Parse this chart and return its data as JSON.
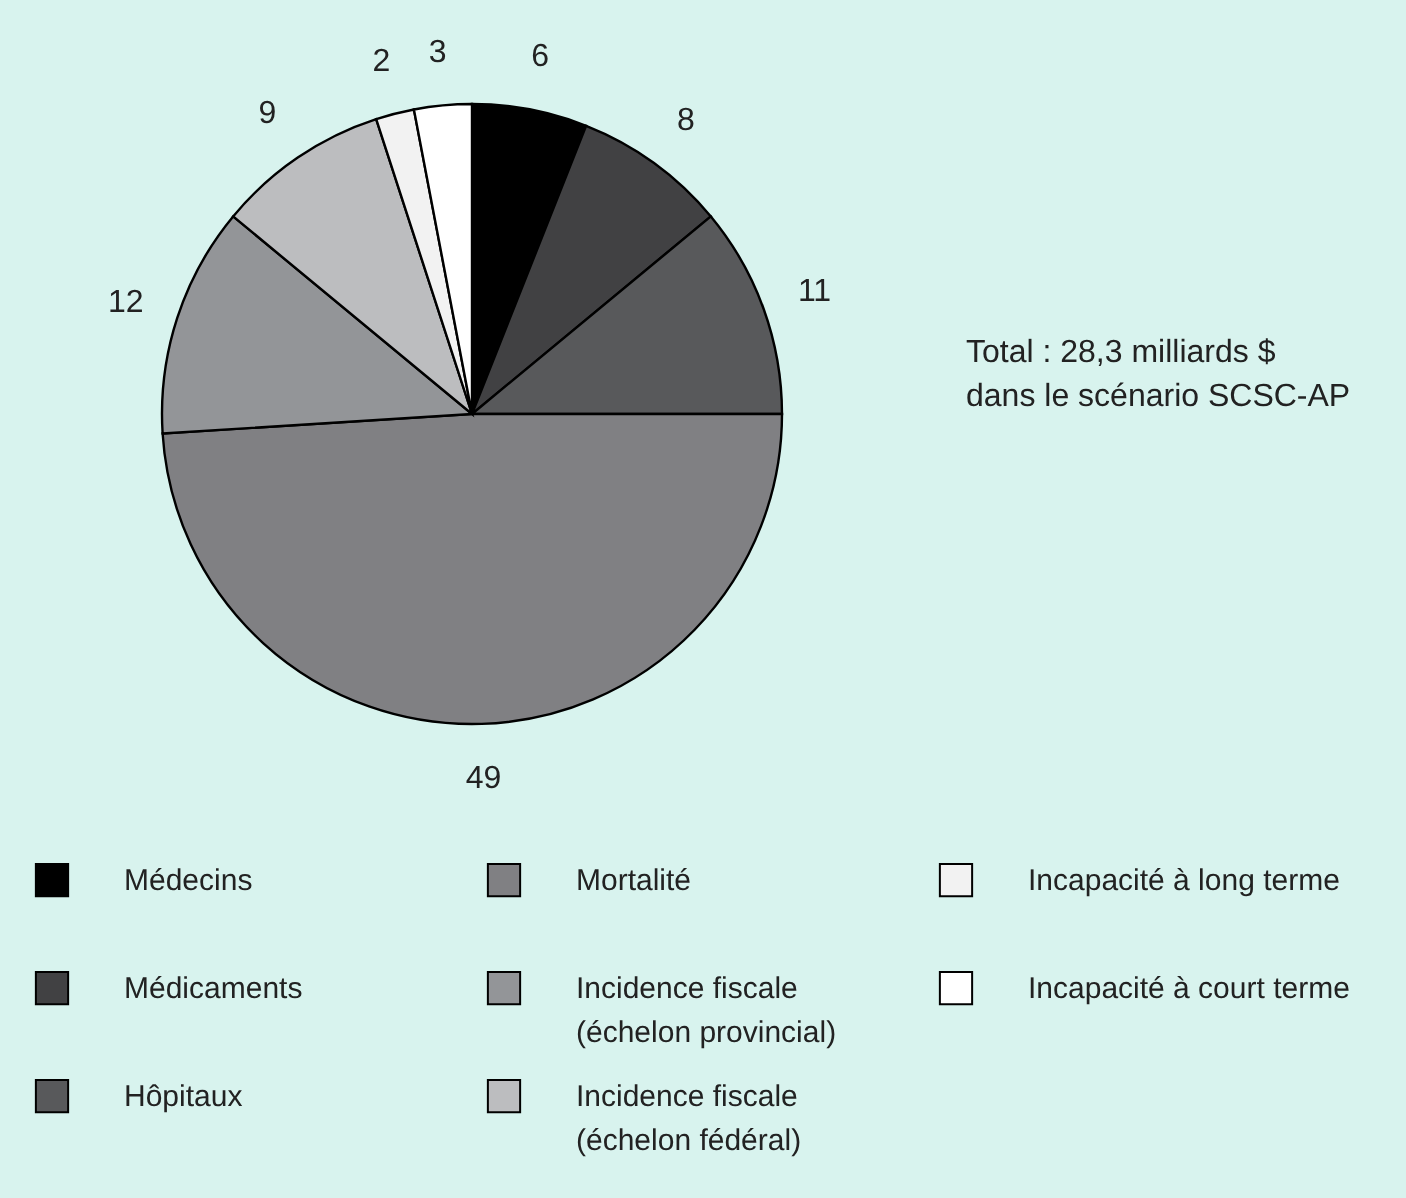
{
  "chart_data": {
    "type": "pie",
    "categories": [
      "Médecins",
      "Médicaments",
      "Hôpitaux",
      "Mortalité",
      "Incidence fiscale\n(échelon provincial)",
      "Incidence fiscale\n(échelon fédéral)",
      "Incapacité à long terme",
      "Incapacité à court terme"
    ],
    "values": [
      6,
      8,
      11,
      49,
      12,
      9,
      2,
      3
    ],
    "colors": [
      "#000000",
      "#414143",
      "#58595b",
      "#808083",
      "#939598",
      "#bcbdbf",
      "#f2f2f2",
      "#ffffff"
    ],
    "data_labels": true,
    "legend": "bottom",
    "annotations": [
      "Total : 28,3 milliards $\ndans le scénario SCSC-AP"
    ]
  }
}
